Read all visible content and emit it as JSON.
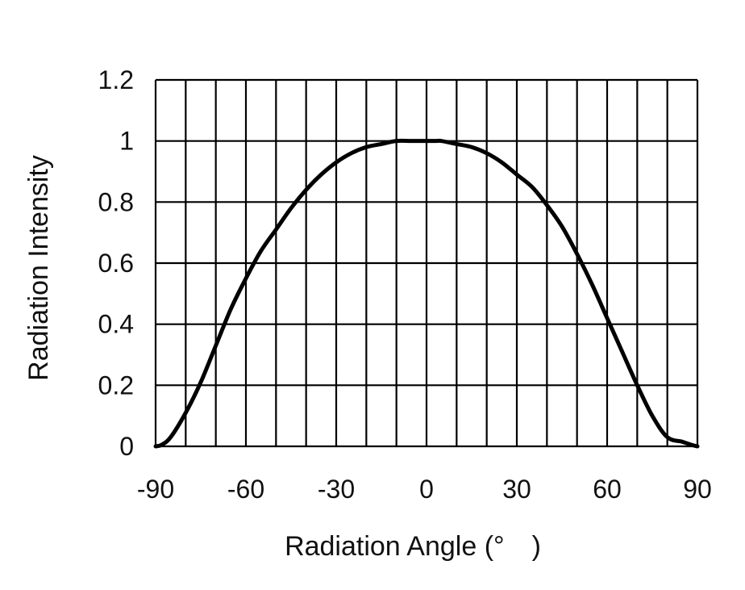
{
  "chart_data": {
    "type": "line",
    "title": "",
    "xlabel": "Radiation Angle (°　)",
    "ylabel": "Radiation Intensity",
    "xlim": [
      -90,
      90
    ],
    "ylim": [
      0,
      1.2
    ],
    "x_ticks": [
      -90,
      -60,
      -30,
      0,
      30,
      60,
      90
    ],
    "x_tick_labels": [
      "-90",
      "-60",
      "-30",
      "0",
      "30",
      "60",
      "90"
    ],
    "y_ticks": [
      0,
      0.2,
      0.4,
      0.6,
      0.8,
      1,
      1.2
    ],
    "y_tick_labels": [
      "0",
      "0.2",
      "0.4",
      "0.6",
      "0.8",
      "1",
      "1.2"
    ],
    "x_grid_step": 10,
    "grid": true,
    "colors": {
      "line": "#000000",
      "grid": "#000000"
    },
    "series": [
      {
        "name": "Radiation Intensity",
        "x": [
          -90,
          -88,
          -85,
          -80,
          -75,
          -70,
          -65,
          -60,
          -55,
          -50,
          -45,
          -40,
          -35,
          -30,
          -25,
          -20,
          -15,
          -10,
          -5,
          0,
          3,
          5,
          10,
          15,
          20,
          25,
          30,
          35,
          40,
          45,
          50,
          55,
          60,
          65,
          70,
          75,
          80,
          85,
          88,
          90
        ],
        "y": [
          0,
          0.005,
          0.03,
          0.11,
          0.21,
          0.33,
          0.45,
          0.55,
          0.64,
          0.71,
          0.78,
          0.84,
          0.89,
          0.93,
          0.96,
          0.98,
          0.99,
          1.0,
          1.0,
          1.0,
          1.0,
          1.0,
          0.99,
          0.98,
          0.96,
          0.93,
          0.89,
          0.85,
          0.79,
          0.72,
          0.63,
          0.53,
          0.42,
          0.31,
          0.2,
          0.1,
          0.03,
          0.015,
          0.005,
          0.0
        ]
      }
    ]
  }
}
